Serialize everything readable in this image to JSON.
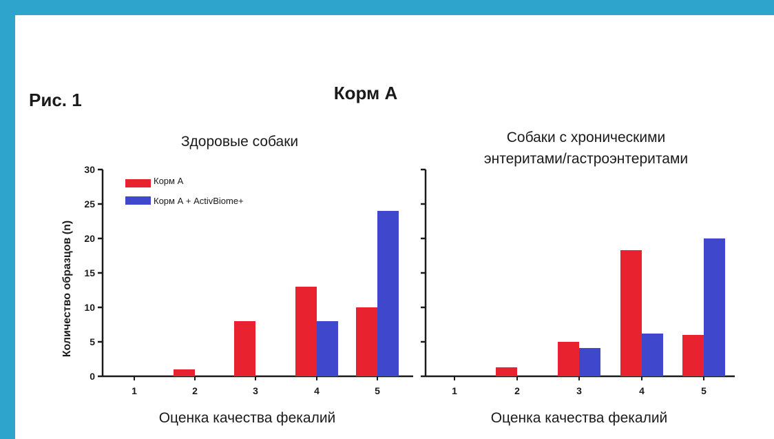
{
  "figure_label": "Рис. 1",
  "main_title": "Корм А",
  "colors": {
    "feed": "#e8232f",
    "feed_plus": "#3f48cc",
    "border": "#2ea3cc"
  },
  "chart_data": [
    {
      "type": "bar",
      "title": "Здоровые собаки",
      "xlabel": "Оценка качества фекалий",
      "ylabel": "Количество образцов (n)",
      "ylim": [
        0,
        30
      ],
      "yticks": [
        0,
        5,
        10,
        15,
        20,
        25,
        30
      ],
      "categories": [
        "1",
        "2",
        "3",
        "4",
        "5"
      ],
      "series": [
        {
          "name": "Корм А",
          "color": "#e8232f",
          "values": [
            0,
            1,
            8,
            13,
            10
          ]
        },
        {
          "name": "Корм А + ActivBiome+",
          "color": "#3f48cc",
          "values": [
            0,
            0,
            0,
            8,
            24
          ]
        }
      ],
      "legend": "top-left"
    },
    {
      "type": "bar",
      "title_lines": [
        "Собаки с хроническими",
        "энтеритами/гастроэнтеритами"
      ],
      "xlabel": "Оценка качества фекалий",
      "ylim": [
        0,
        30
      ],
      "categories": [
        "1",
        "2",
        "3",
        "4",
        "5"
      ],
      "series": [
        {
          "name": "Корм А",
          "color": "#e8232f",
          "values": [
            0,
            1.3,
            5,
            18.3,
            6
          ]
        },
        {
          "name": "Корм А + ActivBiome+",
          "color": "#3f48cc",
          "values": [
            0,
            0,
            4.1,
            6.2,
            20
          ]
        }
      ]
    }
  ]
}
